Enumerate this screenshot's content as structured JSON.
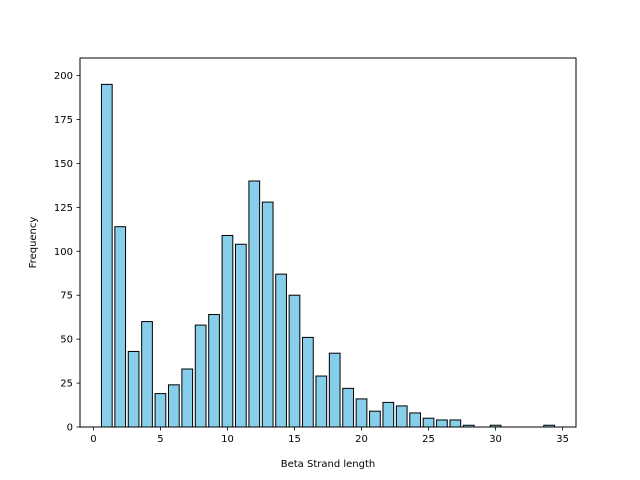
{
  "chart_data": {
    "type": "bar",
    "title": "",
    "xlabel": "Beta Strand length",
    "ylabel": "Frequency",
    "xlim": [
      -1,
      36
    ],
    "ylim": [
      0,
      210
    ],
    "xticks": [
      0,
      5,
      10,
      15,
      20,
      25,
      30,
      35
    ],
    "yticks": [
      0,
      25,
      50,
      75,
      100,
      125,
      150,
      175,
      200
    ],
    "bar_color": "#87ceeb",
    "edge_color": "#000000",
    "grid": false,
    "x": [
      1,
      2,
      3,
      4,
      5,
      6,
      7,
      8,
      9,
      10,
      11,
      12,
      13,
      14,
      15,
      16,
      17,
      18,
      19,
      20,
      21,
      22,
      23,
      24,
      25,
      26,
      27,
      28,
      30,
      34
    ],
    "values": [
      195,
      114,
      43,
      60,
      19,
      24,
      33,
      58,
      64,
      109,
      104,
      140,
      128,
      87,
      75,
      51,
      29,
      42,
      22,
      16,
      9,
      14,
      12,
      8,
      5,
      4,
      4,
      1,
      1,
      1
    ]
  }
}
